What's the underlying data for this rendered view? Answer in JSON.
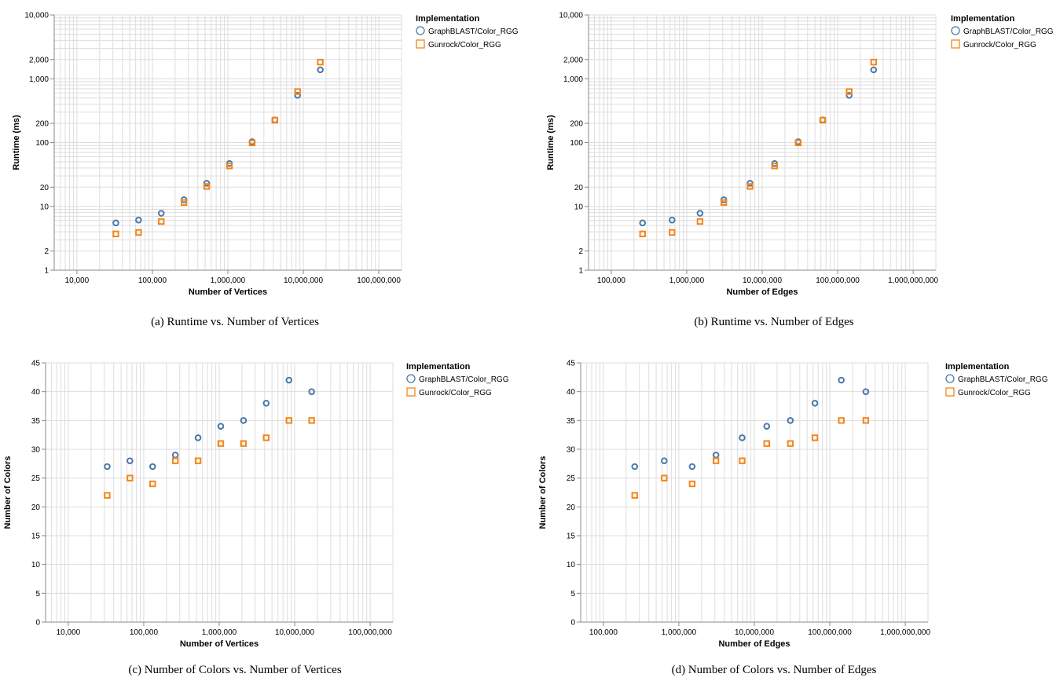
{
  "colors": {
    "graphblast": "#4c78a8",
    "gunrock": "#f58518"
  },
  "chart_data": [
    {
      "type": "scatter",
      "caption": "(a) Runtime vs. Number of Vertices",
      "xlabel": "Number of Vertices",
      "ylabel": "Runtime (ms)",
      "xscale": "log",
      "yscale": "log",
      "xlim": [
        5000,
        200000000
      ],
      "ylim": [
        1,
        10000
      ],
      "xticks": [
        10000,
        100000,
        1000000,
        10000000,
        100000000
      ],
      "xtick_labels": [
        "10,000",
        "100,000",
        "1,000,000",
        "10,000,000",
        "100,000,000"
      ],
      "yticks": [
        1,
        2,
        10,
        20,
        100,
        200,
        1000,
        2000,
        10000
      ],
      "ytick_labels": [
        "1",
        "2",
        "10",
        "20",
        "100",
        "200",
        "1,000",
        "2,000",
        "10,000"
      ],
      "grid": true,
      "legend_title": "Implementation",
      "legend_position": "right",
      "series": [
        {
          "name": "GraphBLAST/Color_RGG",
          "marker": "circle",
          "x": [
            32768,
            65536,
            131072,
            262144,
            524288,
            1048576,
            2097152,
            4194304,
            8388608,
            16777216
          ],
          "y": [
            5.5,
            6.1,
            7.8,
            12.7,
            23,
            47,
            103,
            226,
            550,
            1380
          ]
        },
        {
          "name": "Gunrock/Color_RGG",
          "marker": "square",
          "x": [
            32768,
            65536,
            131072,
            262144,
            524288,
            1048576,
            2097152,
            4194304,
            8388608,
            16777216
          ],
          "y": [
            3.7,
            3.9,
            5.8,
            11.5,
            20.5,
            43,
            99,
            224,
            630,
            1820
          ]
        }
      ]
    },
    {
      "type": "scatter",
      "caption": "(b) Runtime vs. Number of Edges",
      "xlabel": "Number of Edges",
      "ylabel": "Runtime (ms)",
      "xscale": "log",
      "yscale": "log",
      "xlim": [
        50000,
        2000000000
      ],
      "ylim": [
        1,
        10000
      ],
      "xticks": [
        100000,
        1000000,
        10000000,
        100000000,
        1000000000
      ],
      "xtick_labels": [
        "100,000",
        "1,000,000",
        "10,000,000",
        "100,000,000",
        "1,000,000,000"
      ],
      "yticks": [
        1,
        2,
        10,
        20,
        100,
        200,
        1000,
        2000,
        10000
      ],
      "ytick_labels": [
        "1",
        "2",
        "10",
        "20",
        "100",
        "200",
        "1,000",
        "2,000",
        "10,000"
      ],
      "grid": true,
      "legend_title": "Implementation",
      "legend_position": "right",
      "series": [
        {
          "name": "GraphBLAST/Color_RGG",
          "marker": "circle",
          "x": [
            260000,
            640000,
            1500000,
            3100000,
            6900000,
            14600000,
            30000000,
            63500000,
            142000000,
            300000000
          ],
          "y": [
            5.5,
            6.1,
            7.8,
            12.7,
            23,
            47,
            103,
            226,
            550,
            1380
          ]
        },
        {
          "name": "Gunrock/Color_RGG",
          "marker": "square",
          "x": [
            260000,
            640000,
            1500000,
            3100000,
            6900000,
            14600000,
            30000000,
            63500000,
            142000000,
            300000000
          ],
          "y": [
            3.7,
            3.9,
            5.8,
            11.5,
            20.5,
            43,
            99,
            224,
            630,
            1820
          ]
        }
      ]
    },
    {
      "type": "scatter",
      "caption": "(c) Number of Colors vs. Number of Vertices",
      "xlabel": "Number of Vertices",
      "ylabel": "Number of Colors",
      "xscale": "log",
      "yscale": "linear",
      "xlim": [
        5000,
        200000000
      ],
      "ylim": [
        0,
        45
      ],
      "xticks": [
        10000,
        100000,
        1000000,
        10000000,
        100000000
      ],
      "xtick_labels": [
        "10,000",
        "100,000",
        "1,000,000",
        "10,000,000",
        "100,000,000"
      ],
      "yticks": [
        0,
        5,
        10,
        15,
        20,
        25,
        30,
        35,
        40,
        45
      ],
      "ytick_labels": [
        "0",
        "5",
        "10",
        "15",
        "20",
        "25",
        "30",
        "35",
        "40",
        "45"
      ],
      "grid": true,
      "legend_title": "Implementation",
      "legend_position": "right",
      "series": [
        {
          "name": "GraphBLAST/Color_RGG",
          "marker": "circle",
          "x": [
            32768,
            65536,
            131072,
            262144,
            524288,
            1048576,
            2097152,
            4194304,
            8388608,
            16777216
          ],
          "y": [
            27,
            28,
            27,
            29,
            32,
            34,
            35,
            38,
            42,
            40
          ]
        },
        {
          "name": "Gunrock/Color_RGG",
          "marker": "square",
          "x": [
            32768,
            65536,
            131072,
            262144,
            524288,
            1048576,
            2097152,
            4194304,
            8388608,
            16777216
          ],
          "y": [
            22,
            25,
            24,
            28,
            28,
            31,
            31,
            32,
            35,
            35
          ]
        }
      ]
    },
    {
      "type": "scatter",
      "caption": "(d) Number of Colors vs. Number of Edges",
      "xlabel": "Number of Edges",
      "ylabel": "Number of Colors",
      "xscale": "log",
      "yscale": "linear",
      "xlim": [
        50000,
        2000000000
      ],
      "ylim": [
        0,
        45
      ],
      "xticks": [
        100000,
        1000000,
        10000000,
        100000000,
        1000000000
      ],
      "xtick_labels": [
        "100,000",
        "1,000,000",
        "10,000,000",
        "100,000,000",
        "1,000,000,000"
      ],
      "yticks": [
        0,
        5,
        10,
        15,
        20,
        25,
        30,
        35,
        40,
        45
      ],
      "ytick_labels": [
        "0",
        "5",
        "10",
        "15",
        "20",
        "25",
        "30",
        "35",
        "40",
        "45"
      ],
      "grid": true,
      "legend_title": "Implementation",
      "legend_position": "right",
      "series": [
        {
          "name": "GraphBLAST/Color_RGG",
          "marker": "circle",
          "x": [
            260000,
            640000,
            1500000,
            3100000,
            6900000,
            14600000,
            30000000,
            63500000,
            142000000,
            300000000
          ],
          "y": [
            27,
            28,
            27,
            29,
            32,
            34,
            35,
            38,
            42,
            40
          ]
        },
        {
          "name": "Gunrock/Color_RGG",
          "marker": "square",
          "x": [
            260000,
            640000,
            1500000,
            3100000,
            6900000,
            14600000,
            30000000,
            63500000,
            142000000,
            300000000
          ],
          "y": [
            22,
            25,
            24,
            28,
            28,
            31,
            31,
            32,
            35,
            35
          ]
        }
      ]
    }
  ]
}
